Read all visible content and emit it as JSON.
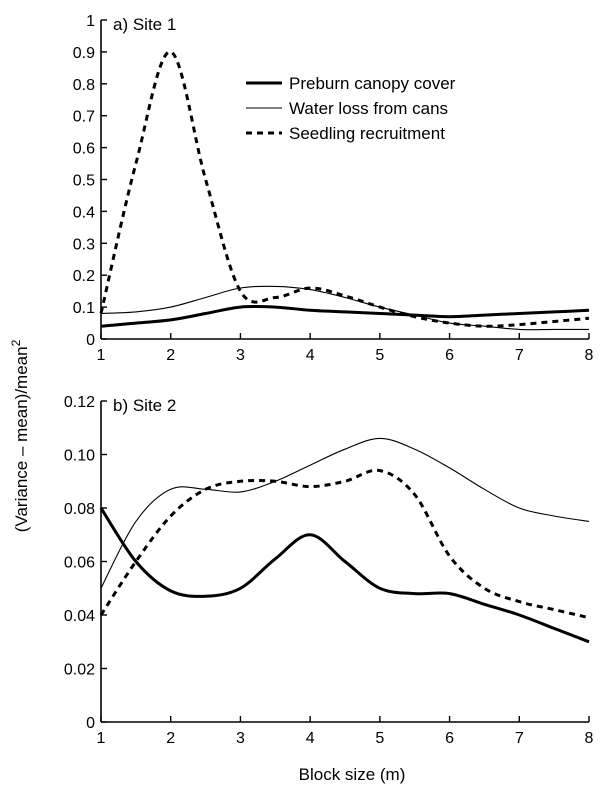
{
  "figure": {
    "ylabel": "(Variance – mean)/mean",
    "ylabel_sup": "2",
    "xlabel": "Block size (m)"
  },
  "chart_data": [
    {
      "type": "line",
      "title": "a) Site 1",
      "xlim": [
        1,
        8
      ],
      "ylim": [
        0,
        1
      ],
      "xticks": [
        "1",
        "2",
        "3",
        "4",
        "5",
        "6",
        "7",
        "8"
      ],
      "yticks": [
        "0",
        "0.1",
        "0.2",
        "0.3",
        "0.4",
        "0.5",
        "0.6",
        "0.7",
        "0.8",
        "0.9",
        "1"
      ],
      "legend_position": "top-right",
      "grid": false,
      "series": [
        {
          "name": "Preburn canopy cover",
          "style": "solid-thick",
          "x": [
            1,
            1.5,
            2,
            2.5,
            3,
            3.5,
            4,
            4.5,
            5,
            5.5,
            6,
            6.5,
            7,
            7.5,
            8
          ],
          "y": [
            0.04,
            0.05,
            0.06,
            0.08,
            0.1,
            0.1,
            0.09,
            0.085,
            0.08,
            0.075,
            0.07,
            0.075,
            0.08,
            0.085,
            0.09
          ]
        },
        {
          "name": "Water loss from cans",
          "style": "solid-thin",
          "x": [
            1,
            1.5,
            2,
            2.5,
            3,
            3.5,
            4,
            4.5,
            5,
            5.5,
            6,
            6.5,
            7,
            7.5,
            8
          ],
          "y": [
            0.08,
            0.085,
            0.1,
            0.13,
            0.16,
            0.165,
            0.155,
            0.13,
            0.1,
            0.075,
            0.05,
            0.04,
            0.03,
            0.03,
            0.03
          ]
        },
        {
          "name": "Seedling recruitment",
          "style": "dashed",
          "x": [
            1,
            1.5,
            2,
            2.5,
            3,
            3.5,
            4,
            4.5,
            5,
            5.5,
            6,
            6.5,
            7,
            7.5,
            8
          ],
          "y": [
            0.08,
            0.55,
            0.9,
            0.5,
            0.15,
            0.13,
            0.16,
            0.135,
            0.1,
            0.07,
            0.05,
            0.04,
            0.045,
            0.055,
            0.065
          ]
        }
      ]
    },
    {
      "type": "line",
      "title": "b) Site 2",
      "xlim": [
        1,
        8
      ],
      "ylim": [
        0,
        0.12
      ],
      "xticks": [
        "1",
        "2",
        "3",
        "4",
        "5",
        "6",
        "7",
        "8"
      ],
      "yticks": [
        "0",
        "0.02",
        "0.04",
        "0.06",
        "0.08",
        "0.10",
        "0.12"
      ],
      "grid": false,
      "series": [
        {
          "name": "Preburn canopy cover",
          "style": "solid-thick",
          "x": [
            1,
            1.5,
            2,
            2.5,
            3,
            3.5,
            4,
            4.5,
            5,
            5.5,
            6,
            6.5,
            7,
            7.5,
            8
          ],
          "y": [
            0.08,
            0.06,
            0.049,
            0.047,
            0.05,
            0.061,
            0.07,
            0.06,
            0.05,
            0.048,
            0.048,
            0.044,
            0.04,
            0.035,
            0.03
          ]
        },
        {
          "name": "Water loss from cans",
          "style": "solid-thin",
          "x": [
            1,
            1.5,
            2,
            2.5,
            3,
            3.5,
            4,
            4.5,
            5,
            5.5,
            6,
            6.5,
            7,
            7.5,
            8
          ],
          "y": [
            0.05,
            0.075,
            0.087,
            0.087,
            0.086,
            0.09,
            0.096,
            0.102,
            0.106,
            0.102,
            0.095,
            0.087,
            0.08,
            0.077,
            0.075
          ]
        },
        {
          "name": "Seedling recruitment",
          "style": "dashed",
          "x": [
            1,
            1.5,
            2,
            2.5,
            3,
            3.5,
            4,
            4.5,
            5,
            5.5,
            6,
            6.5,
            7,
            7.5,
            8
          ],
          "y": [
            0.04,
            0.06,
            0.077,
            0.087,
            0.09,
            0.09,
            0.088,
            0.09,
            0.094,
            0.085,
            0.062,
            0.05,
            0.045,
            0.042,
            0.039
          ]
        }
      ]
    }
  ]
}
